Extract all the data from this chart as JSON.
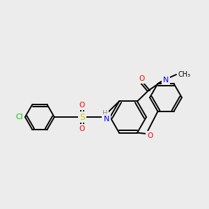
{
  "bg_color": "#ececec",
  "bond_color": "#000000",
  "atom_colors": {
    "O": "#ff0000",
    "N": "#0000ff",
    "S": "#cccc00",
    "Cl": "#00cc00",
    "C": "#000000",
    "H": "#888888"
  },
  "font_size": 7.5,
  "lw": 1.4
}
